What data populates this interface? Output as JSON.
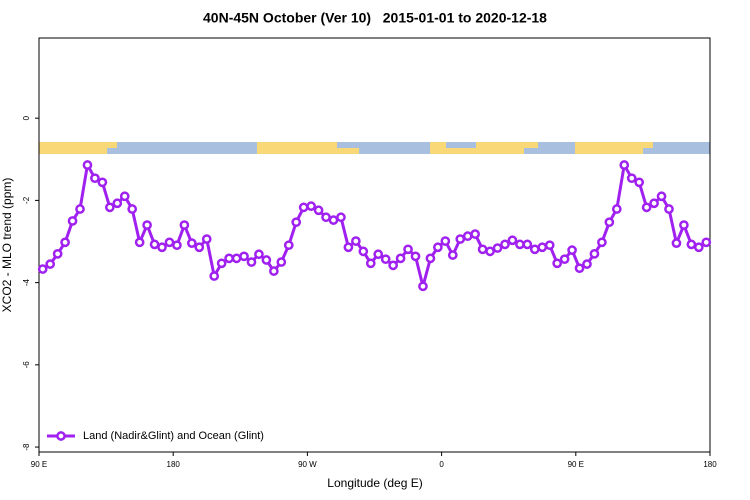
{
  "chart_data": {
    "type": "line",
    "title": "40N-45N October (Ver 10)   2015-01-01 to 2020-12-18",
    "xlabel": "Longitude (deg E)",
    "ylabel": "XCO2 - MLO trend (ppm)",
    "x": [
      92.5,
      97.5,
      102.5,
      107.5,
      112.5,
      117.5,
      122.5,
      127.5,
      132.5,
      137.5,
      142.5,
      147.5,
      152.5,
      157.5,
      162.5,
      167.5,
      172.5,
      177.5,
      182.5,
      187.5,
      192.5,
      197.5,
      202.5,
      207.5,
      212.5,
      217.5,
      222.5,
      227.5,
      232.5,
      237.5,
      242.5,
      247.5,
      252.5,
      257.5,
      262.5,
      267.5,
      272.5,
      277.5,
      282.5,
      287.5,
      292.5,
      297.5,
      302.5,
      307.5,
      312.5,
      317.5,
      322.5,
      327.5,
      332.5,
      337.5,
      342.5,
      347.5,
      352.5,
      357.5,
      362.5,
      367.5,
      372.5,
      377.5,
      382.5,
      387.5,
      392.5,
      397.5,
      402.5,
      407.5,
      412.5,
      417.5,
      422.5,
      427.5,
      432.5,
      437.5,
      442.5,
      447.5,
      452.5,
      457.5,
      462.5,
      467.5,
      472.5,
      477.5,
      482.5,
      487.5,
      492.5,
      497.5,
      502.5,
      507.5,
      512.5,
      517.5,
      522.5,
      527.5,
      532.5,
      537.5
    ],
    "series": [
      {
        "name": "Land (Nadir&Glint) and Ocean (Glint)",
        "color": "#a020f0",
        "values": [
          -3.67,
          -3.55,
          -3.3,
          -3.02,
          -2.5,
          -2.21,
          -1.14,
          -1.46,
          -1.56,
          -2.17,
          -2.07,
          -1.9,
          -2.21,
          -3.02,
          -2.6,
          -3.07,
          -3.14,
          -3.02,
          -3.09,
          -2.6,
          -3.04,
          -3.14,
          -2.94,
          -3.84,
          -3.53,
          -3.41,
          -3.41,
          -3.36,
          -3.5,
          -3.31,
          -3.45,
          -3.72,
          -3.5,
          -3.09,
          -2.53,
          -2.17,
          -2.14,
          -2.24,
          -2.41,
          -2.48,
          -2.41,
          -3.14,
          -2.99,
          -3.24,
          -3.53,
          -3.31,
          -3.43,
          -3.58,
          -3.41,
          -3.19,
          -3.36,
          -4.09,
          -3.41,
          -3.14,
          -2.99,
          -3.33,
          -2.94,
          -2.87,
          -2.82,
          -3.19,
          -3.24,
          -3.16,
          -3.07,
          -2.97,
          -3.07,
          -3.07,
          -3.19,
          -3.14,
          -3.09,
          -3.53,
          -3.43,
          -3.21,
          -3.65,
          -3.55,
          -3.3,
          -3.02,
          -2.53,
          -2.21,
          -1.14,
          -1.46,
          -1.56,
          -2.17,
          -2.07,
          -1.9,
          -2.21,
          -3.04,
          -2.6,
          -3.07,
          -3.14,
          -3.02
        ]
      }
    ],
    "xlim": [
      90,
      540
    ],
    "xticks": [
      {
        "value": 90,
        "label": "90 E"
      },
      180,
      {
        "value": 270,
        "label": "90 W"
      },
      {
        "value": 360,
        "label": "0"
      },
      {
        "value": 450,
        "label": "90 E"
      },
      {
        "value": 540,
        "label": "180"
      }
    ],
    "ylim": [
      -8.12,
      1.95
    ],
    "yticks": [
      -8,
      -6,
      -4,
      -2,
      0
    ],
    "legend": "bottomleft"
  }
}
